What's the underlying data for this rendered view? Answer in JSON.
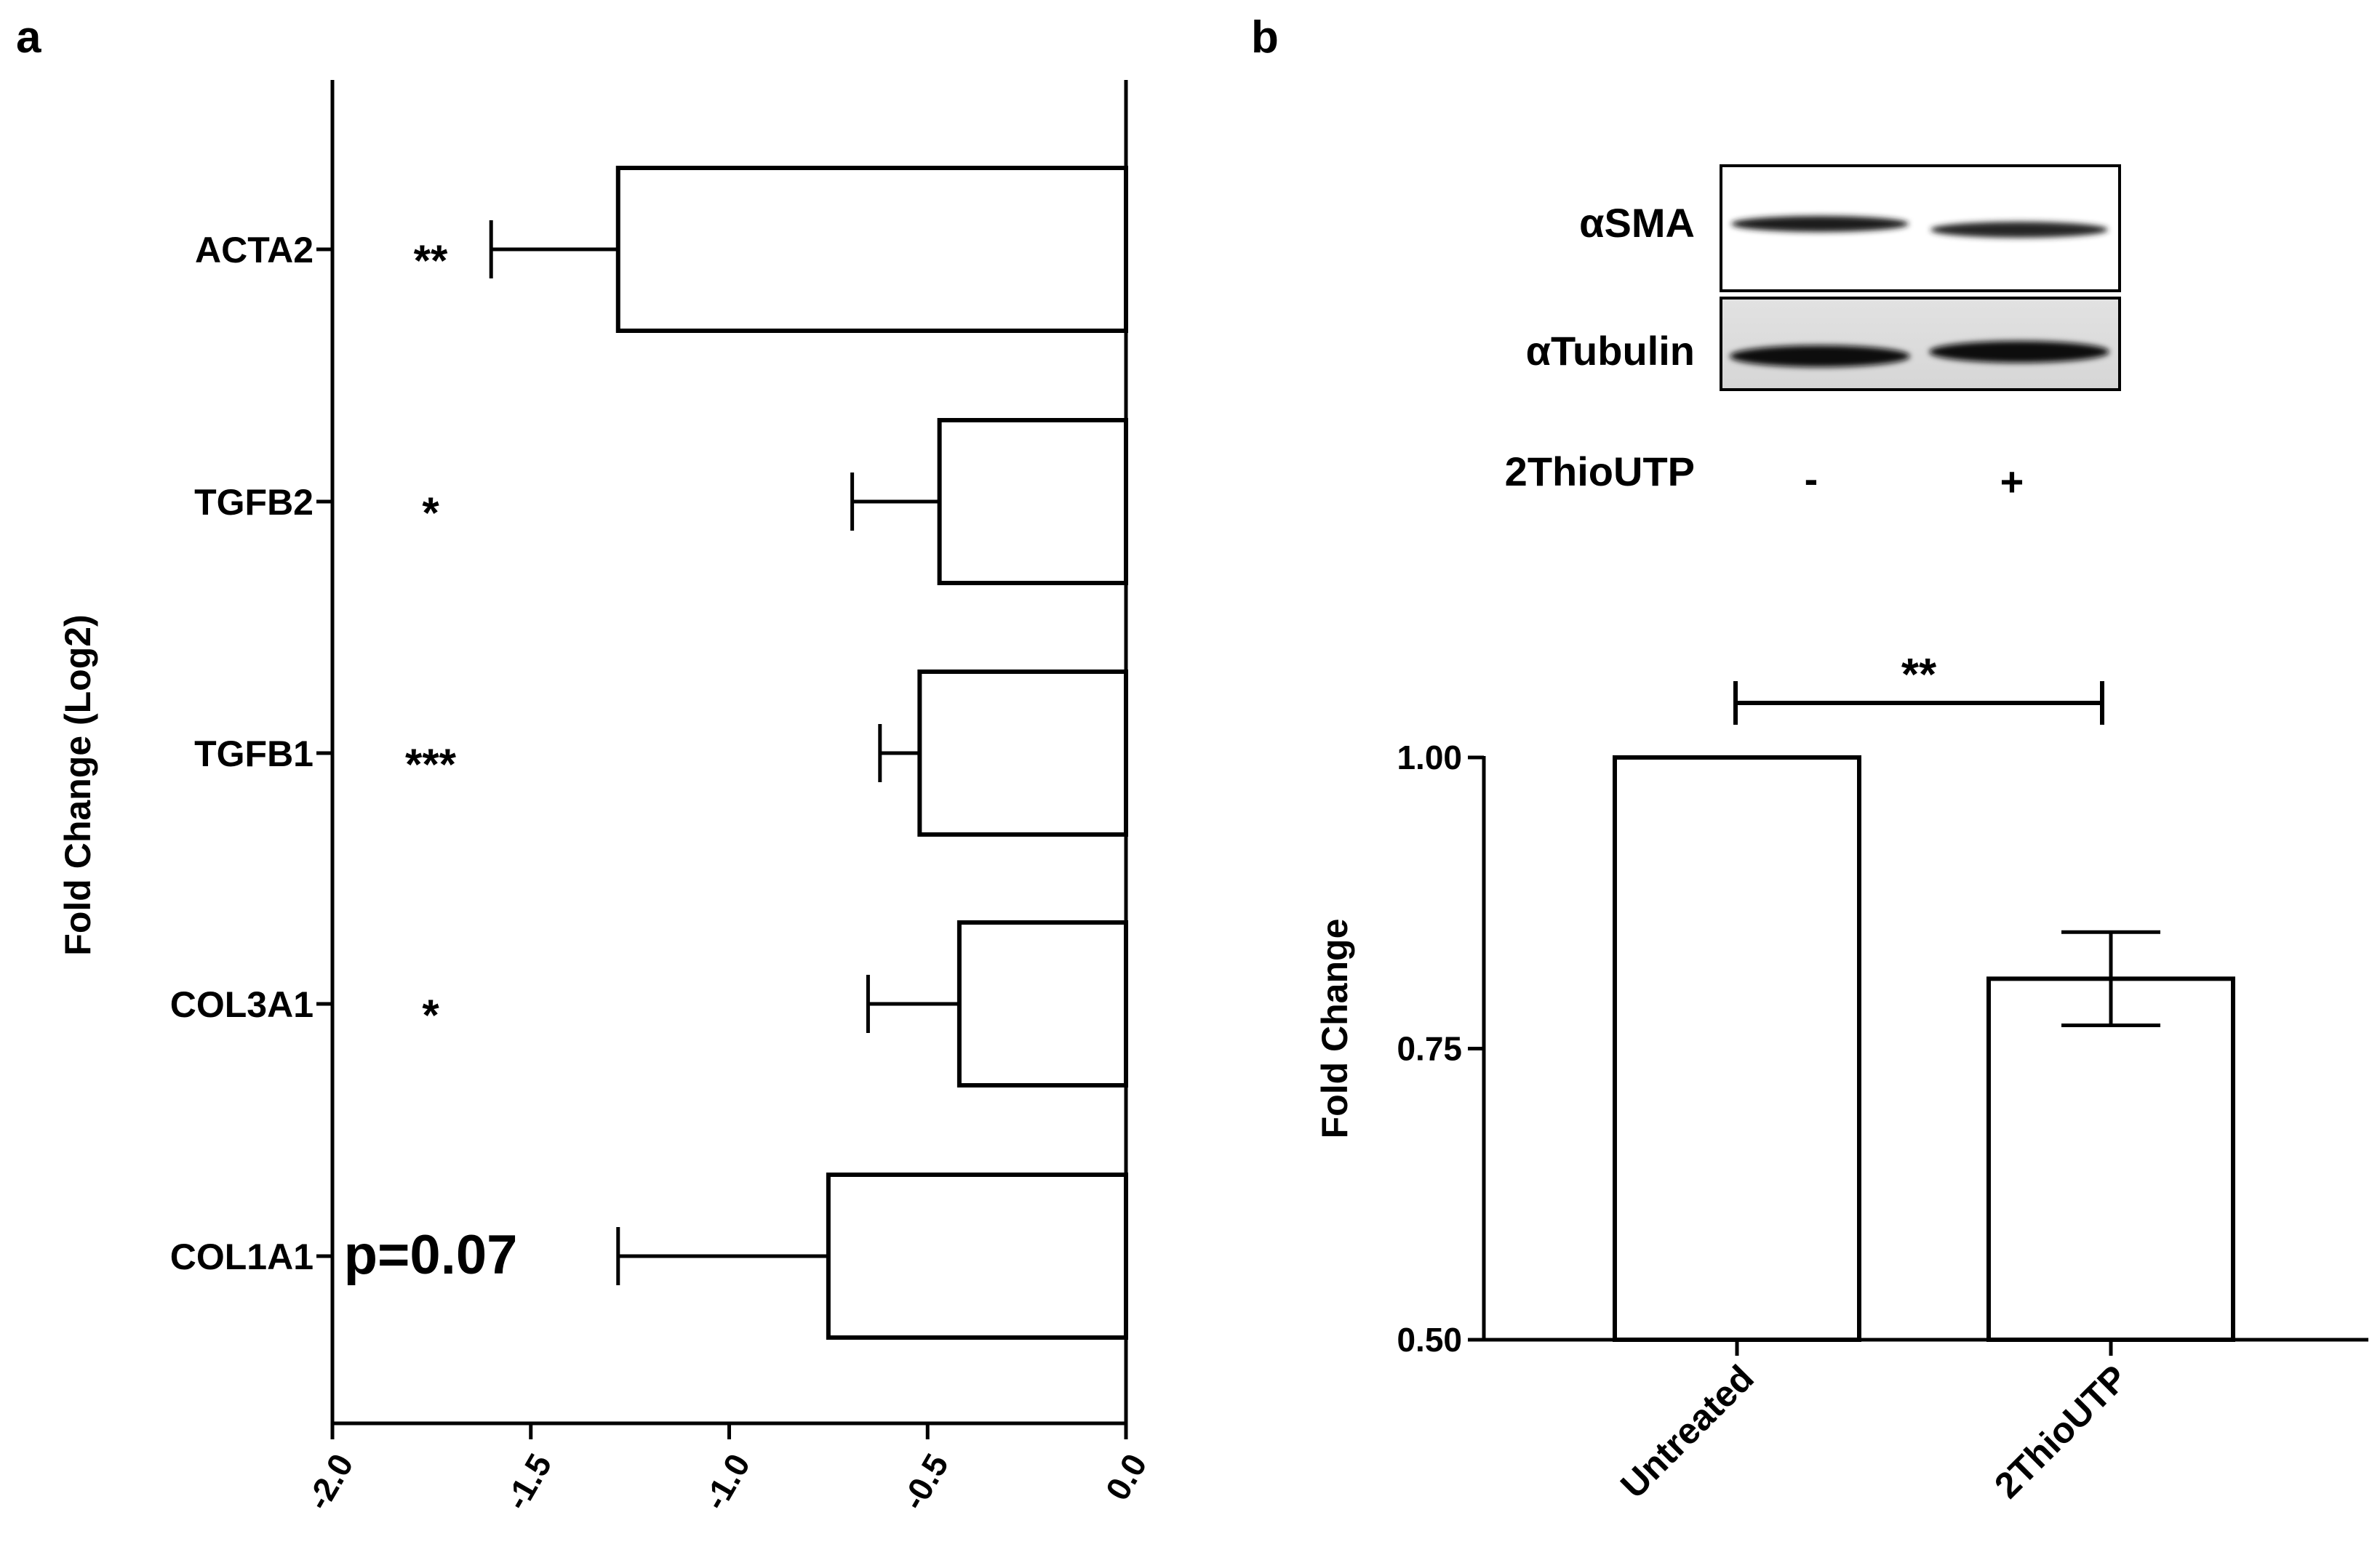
{
  "chart_data": [
    {
      "panel": "a",
      "type": "bar",
      "orientation": "horizontal",
      "title": "",
      "xlabel": "",
      "ylabel": "Fold Change (Log2)",
      "xlim": [
        -2.0,
        0.0
      ],
      "xticks": [
        "-2.0",
        "-1.5",
        "-1.0",
        "-0.5",
        "0.0"
      ],
      "grid": false,
      "categories": [
        "ACTA2",
        "TGFB2",
        "TGFB1",
        "COL3A1",
        "COL1A1"
      ],
      "values": [
        -1.28,
        -0.47,
        -0.52,
        -0.42,
        -0.75
      ],
      "errors": [
        0.32,
        0.22,
        0.1,
        0.23,
        0.53
      ],
      "annotations": [
        "**",
        "*",
        "***",
        "*",
        "p=0.07"
      ]
    },
    {
      "panel": "b",
      "type": "bar",
      "title": "",
      "xlabel": "",
      "ylabel": "Fold Change",
      "ylim": [
        0.5,
        1.0
      ],
      "yticks": [
        "0.50",
        "0.75",
        "1.00"
      ],
      "grid": false,
      "categories": [
        "Untreated",
        "2ThioUTP"
      ],
      "values": [
        1.0,
        0.81
      ],
      "errors": [
        0,
        0.04
      ],
      "significance": {
        "label": "**",
        "from": "Untreated",
        "to": "2ThioUTP"
      }
    }
  ],
  "blot": {
    "bands": [
      "αSMA",
      "αTubulin"
    ],
    "treatment_label": "2ThioUTP",
    "lanes": [
      "-",
      "+"
    ]
  },
  "panel_labels": [
    "a",
    "b"
  ]
}
